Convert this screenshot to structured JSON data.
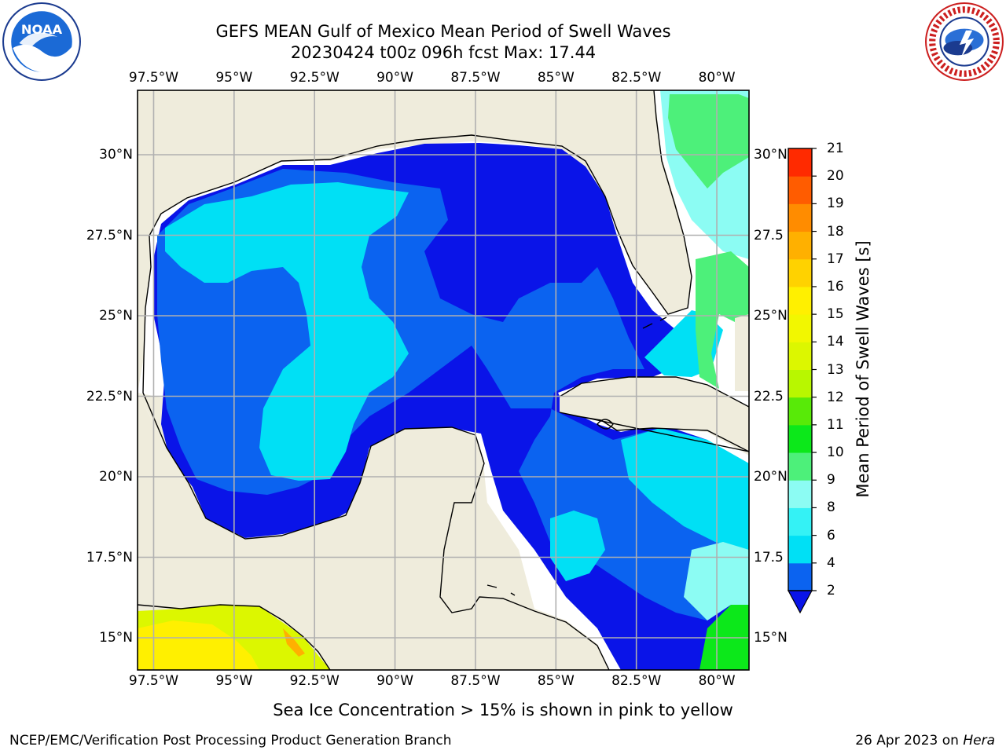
{
  "header": {
    "title_line1": "GEFS MEAN Gulf of Mexico Mean Period of Swell Waves",
    "title_line2": "20230424 t00z 096h fcst   Max: 17.44"
  },
  "logos": {
    "left": {
      "icon": "noaa-logo",
      "text": "NOAA"
    },
    "right": {
      "icon": "nws-logo"
    }
  },
  "map": {
    "lon_labels": [
      "97.5°W",
      "95°W",
      "92.5°W",
      "90°W",
      "87.5°W",
      "85°W",
      "82.5°W",
      "80°W"
    ],
    "lat_labels_left": [
      "30°N",
      "27.5°N",
      "25°N",
      "22.5°N",
      "20°N",
      "17.5°N",
      "15°N"
    ],
    "lat_labels_right": [
      "30°N",
      "27.5",
      "25°N",
      "22.5",
      "20°N",
      "17.5",
      "15°N"
    ],
    "lon_range": [
      -98,
      -79
    ],
    "lat_range": [
      14,
      32
    ],
    "land_color": "#efecdc",
    "grid": true
  },
  "colorbar": {
    "label": "Mean Period of Swell Waves [s]",
    "ticks": [
      "2",
      "4",
      "6",
      "8",
      "9",
      "10",
      "11",
      "12",
      "13",
      "14",
      "15",
      "16",
      "17",
      "18",
      "19",
      "20",
      "21"
    ],
    "colors": [
      "#0b63f0",
      "#00e0f5",
      "#34f2f5",
      "#8cfcf3",
      "#4df07a",
      "#0ce81a",
      "#58ea08",
      "#b8f700",
      "#dcf700",
      "#f2f700",
      "#fff000",
      "#ffd200",
      "#ffb000",
      "#ff8c00",
      "#ff5c00",
      "#ff2a00",
      "#ff0000"
    ],
    "under_color": "#0a14e8"
  },
  "footer": {
    "note": "Sea Ice Concentration > 15% is shown in pink to yellow",
    "credit": "NCEP/EMC/Verification Post Processing Product Generation Branch",
    "date": "26 Apr 2023 on",
    "host": "Hera"
  }
}
